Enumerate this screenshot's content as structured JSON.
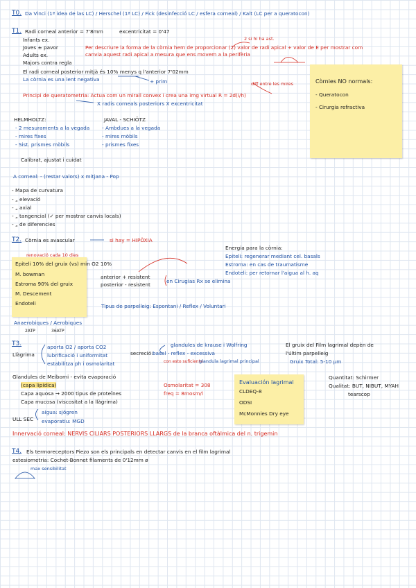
{
  "t0": [
    "T0.",
    "Da Vinci (1ª idea de las LC) / Herschel (1ª LC) / Fick (desinfecció LC / esfera corneal) / Kalt (LC per a queratocon)"
  ],
  "t1": [
    "T1.",
    "Radi corneal anterior = 7'8mm",
    "excentricitat = 0'47",
    "Infants ex.",
    "Joves ± pavor",
    "Adults ex.",
    "Majors contra regla",
    "Per descriure la forma de la còrnia hem de proporcionar (2) valor de radi apical + valor de E per mostrar com",
    "canvia aquest radi apical a mesura que ens movem a la perifèria",
    "2 si hi ha ast.",
    "El radi corneal posterior mitjà és 10% menys q l'anterior 7'02mm",
    "La còrnia es una lent negativa",
    "+ prim",
    "diff entre les mires",
    "Principi de queratometria: Actua com un mirall convex i crea una img virtual  R = 2d(i/h)",
    "X radis corneals posteriors  X excentricitat",
    "HELMHOLTZ:",
    "- 2 mesuraments a la vegada",
    "- mires fixes",
    "- Sist. prismes mòbils",
    "JAVAL - SCHIÖTZ",
    "- Ambdues a la vegada",
    "- mires mòbils",
    "- prismes fixes",
    "Calibrat, ajustat i cuidat",
    "A corneal: - (restar valors) x mitjana - Pop",
    "- Mapa de curvatura",
    "- „ elevació",
    "- „ axial",
    "- „ tangencial (✓ per mostrar canvis locals)",
    "- „ de diferencies"
  ],
  "note1": [
    "Còrnies NO normals:",
    "- Queratocon",
    "- Cirurgia refractiva"
  ],
  "t2": [
    "T2.",
    "Còrnia es avascular",
    "si hay = HIPÒXIA",
    "Energia para la còrnia:",
    "Epiteli: regenerar mediant cel. basals",
    "Estroma: en cas de traumatisme",
    "Endoteli: per retornar l'aigua al h. aq",
    "renovació cada 10 dies",
    "anterior + resistent",
    "posterior - resistent",
    "en Cirugias Rx se elimina",
    "Tipus de parpelleig: Espontani / Reflex / Voluntari",
    "Anaerobiques / Aerobiques",
    "2ATP",
    "36ATP"
  ],
  "note2": [
    "Epiteli 10% del gruix (vs) min O2 10%",
    "M. bowman",
    "Estroma 90% del gruix",
    "M. Descement",
    "Endoteli"
  ],
  "t3": [
    "T3.",
    "Llàgrima",
    "aporta O2 / aporta CO2",
    "lubrificació i uniformitat",
    "estabilitza ph i osmolaritat",
    "secreció:",
    "basal - reflex - excessiva",
    "glandules de krause i Wolfring",
    "con esto suficiente",
    "glandula lagrimal principal",
    "El gruix del Film lagrimal depèn de",
    "l'últim parpelleig",
    "Gruix Total: 5-10 μm",
    "Glandules de Meibomi - evita evaporació",
    "(capa lipídica)",
    "Capa aquosa → 2000 tipus de proteïnes",
    "Capa mucosa (viscositat a la llàgrima)",
    "Osmolaritat = 308",
    "freq = 8mosm/l",
    "Quantitat: Schirmer",
    "Qualitat: BUT, NIBUT, MYAH",
    "tearscop",
    "ULL SEC",
    "aigua: sjögren",
    "evaporatiu: MGD",
    "Innervació corneal: NERVIS CILIARS POSTERIORS LLARGS de la branca oftàlmica del n. trigemin"
  ],
  "note3": [
    "Evaluación lagrimal",
    "CLDEQ-8",
    "ODSI",
    "McMonnies Dry eye"
  ],
  "t4": [
    "T4.",
    "Els termoreceptors Piezo son els principals en detectar canvis en el film lagrimal",
    "estesiometria: Cochet-Bonnet filaments de 0'12mm ø",
    "max sensibilitat"
  ]
}
